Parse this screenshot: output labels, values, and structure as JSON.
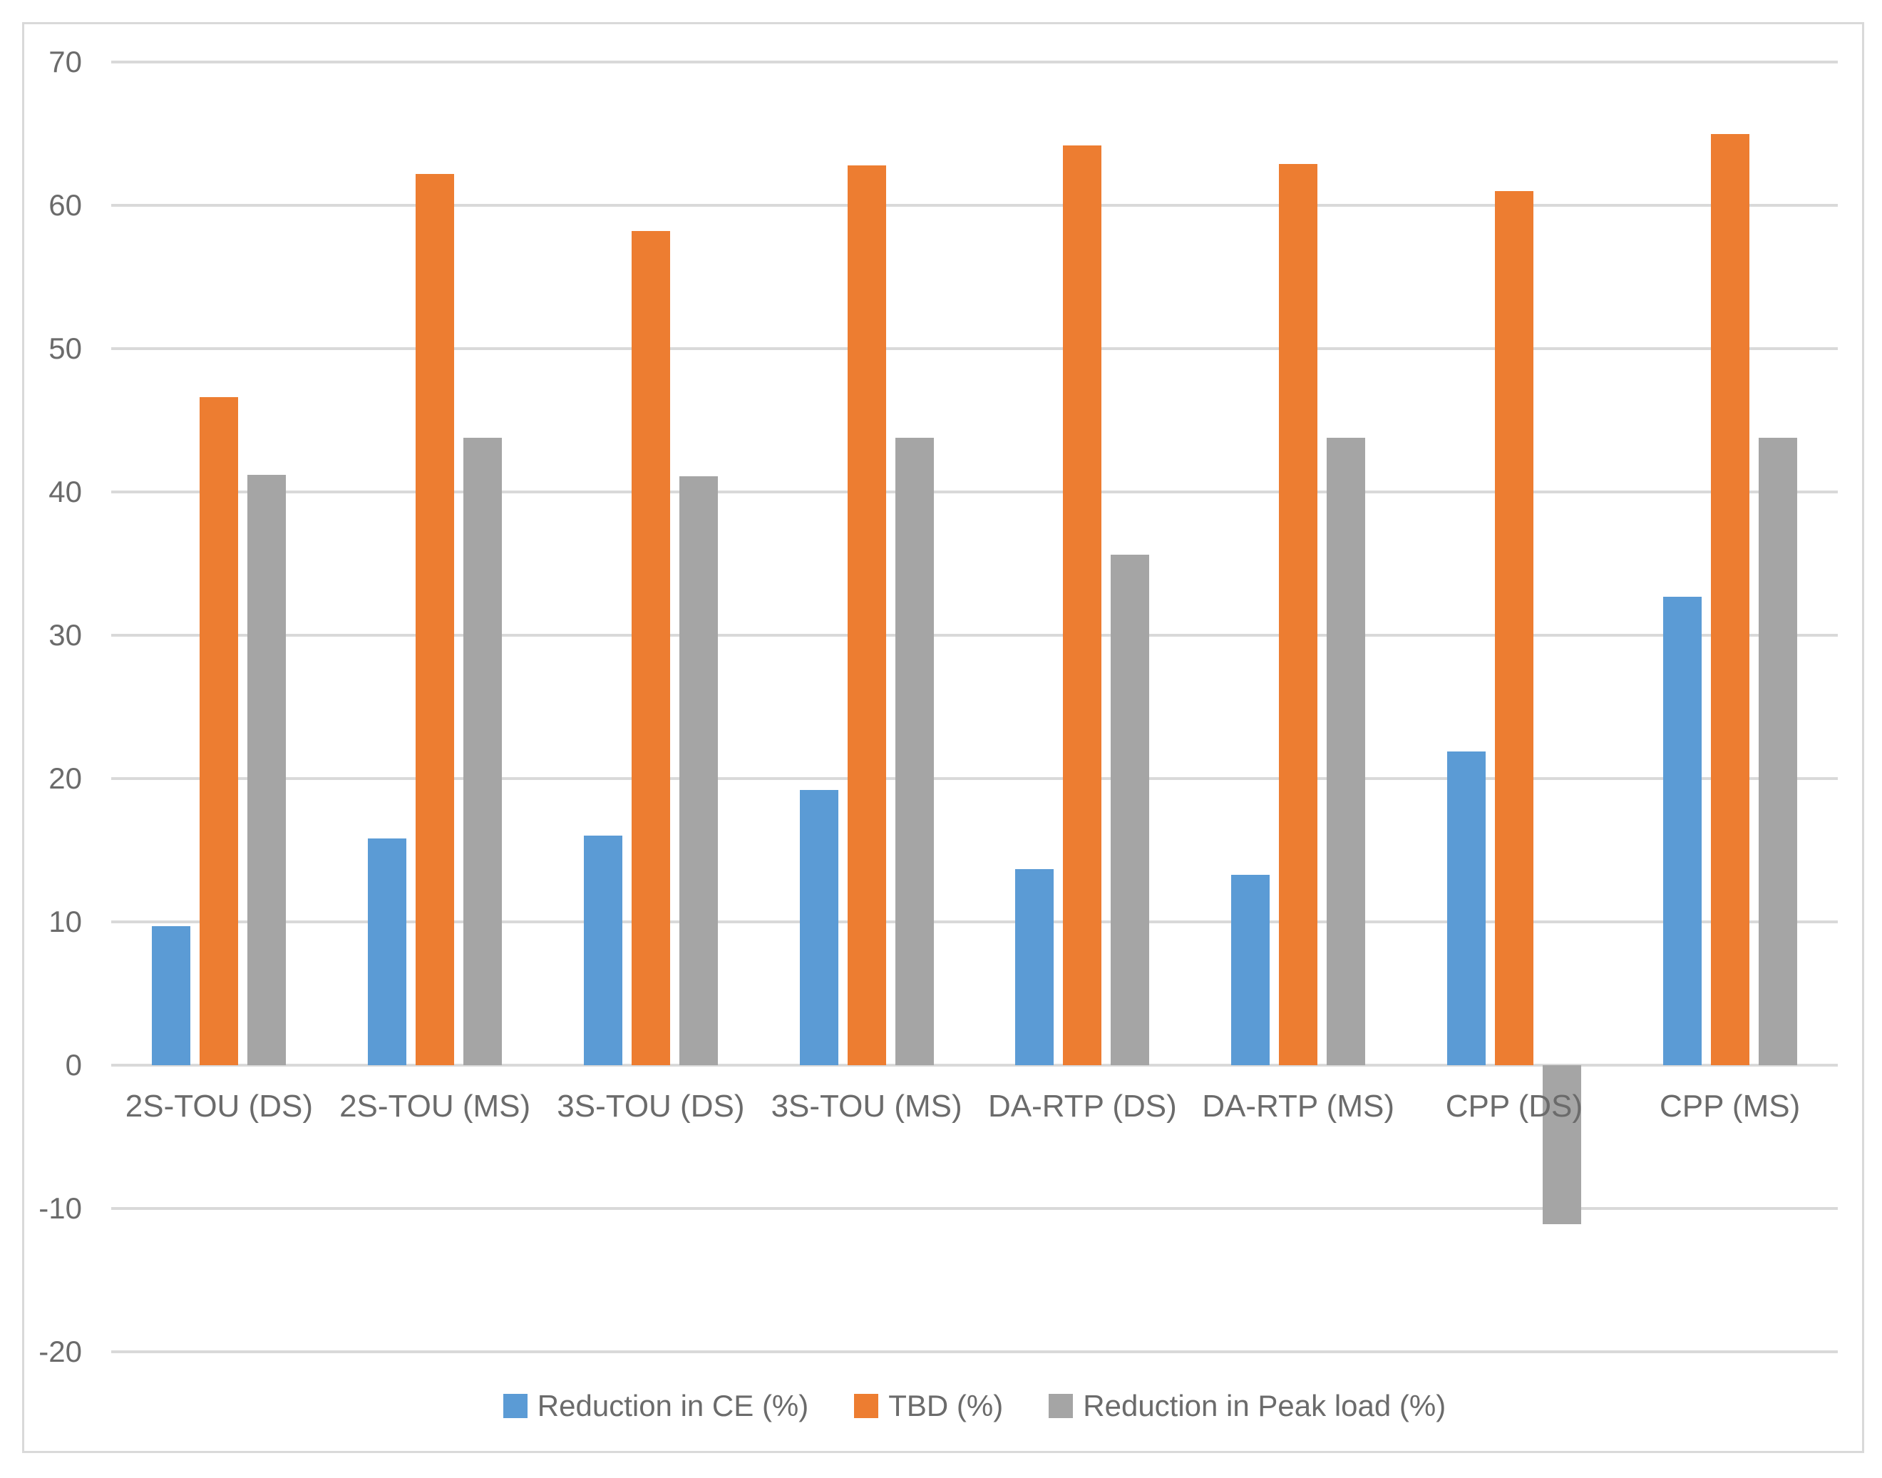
{
  "chart_data": {
    "type": "bar",
    "title": "",
    "xlabel": "",
    "ylabel": "",
    "categories": [
      "2S-TOU (DS)",
      "2S-TOU (MS)",
      "3S-TOU (DS)",
      "3S-TOU (MS)",
      "DA-RTP (DS)",
      "DA-RTP (MS)",
      "CPP (DS)",
      "CPP (MS)"
    ],
    "series": [
      {
        "name": "Reduction in CE (%)",
        "color": "#5B9BD5",
        "values": [
          9.7,
          15.8,
          16.0,
          19.2,
          13.7,
          13.3,
          21.9,
          32.7
        ]
      },
      {
        "name": "TBD (%)",
        "color": "#ED7D31",
        "values": [
          46.6,
          62.2,
          58.2,
          62.8,
          64.2,
          62.9,
          61.0,
          65.0
        ]
      },
      {
        "name": "Reduction in Peak load (%)",
        "color": "#A5A5A5",
        "values": [
          41.2,
          43.8,
          41.1,
          43.8,
          35.6,
          43.8,
          -11.1,
          43.8
        ]
      }
    ],
    "ylim": [
      -20,
      70
    ],
    "yticks": [
      70,
      60,
      50,
      40,
      30,
      20,
      10,
      0,
      -10,
      -20
    ],
    "grid": true,
    "legend_position": "bottom"
  },
  "colors": {
    "gridline": "#D9D9D9",
    "frame_border": "#D9D9D9",
    "axis_text": "#6B6B6B",
    "background": "#FFFFFF"
  }
}
